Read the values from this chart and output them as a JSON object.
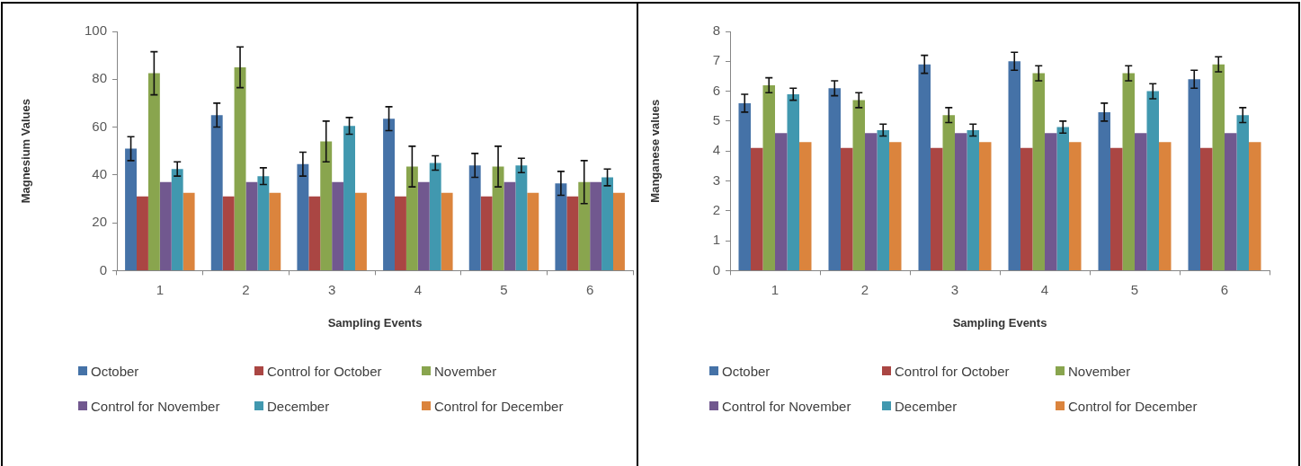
{
  "chart_data": [
    {
      "type": "bar",
      "xlabel": "Sampling Events",
      "ylabel": "Magnesium Values",
      "categories": [
        "1",
        "2",
        "3",
        "4",
        "5",
        "6"
      ],
      "series": [
        {
          "name": "October",
          "color": "#4572a7",
          "values": [
            51,
            65,
            44.5,
            63.5,
            44,
            36.5
          ],
          "errors": [
            5,
            5,
            5,
            5,
            5,
            5
          ]
        },
        {
          "name": "Control for October",
          "color": "#aa4643",
          "values": [
            31,
            31,
            31,
            31,
            31,
            31
          ]
        },
        {
          "name": "November",
          "color": "#89a54e",
          "values": [
            82.5,
            85,
            54,
            43.5,
            43.5,
            37
          ],
          "errors": [
            9,
            8.5,
            8.5,
            8.5,
            8.5,
            9
          ]
        },
        {
          "name": "Control for November",
          "color": "#71588f",
          "values": [
            37,
            37,
            37,
            37,
            37,
            37
          ]
        },
        {
          "name": "December",
          "color": "#4198af",
          "values": [
            42.5,
            39.5,
            60.5,
            45,
            44,
            39
          ],
          "errors": [
            3,
            3.5,
            3.5,
            3,
            3,
            3.5
          ]
        },
        {
          "name": "Control for December",
          "color": "#db843d",
          "values": [
            32.5,
            32.5,
            32.5,
            32.5,
            32.5,
            32.5
          ]
        }
      ],
      "ylim": [
        0,
        100
      ],
      "yticks": [
        0,
        20,
        40,
        60,
        80,
        100
      ],
      "legend": "bottom"
    },
    {
      "type": "bar",
      "xlabel": "Sampling Events",
      "ylabel": "Manganese values",
      "categories": [
        "1",
        "2",
        "3",
        "4",
        "5",
        "6"
      ],
      "series": [
        {
          "name": "October",
          "color": "#4572a7",
          "values": [
            5.6,
            6.1,
            6.9,
            7.0,
            5.3,
            6.4
          ],
          "errors": [
            0.3,
            0.25,
            0.3,
            0.3,
            0.3,
            0.3
          ]
        },
        {
          "name": "Control for October",
          "color": "#aa4643",
          "values": [
            4.1,
            4.1,
            4.1,
            4.1,
            4.1,
            4.1
          ]
        },
        {
          "name": "November",
          "color": "#89a54e",
          "values": [
            6.2,
            5.7,
            5.2,
            6.6,
            6.6,
            6.9
          ],
          "errors": [
            0.25,
            0.25,
            0.25,
            0.25,
            0.25,
            0.25
          ]
        },
        {
          "name": "Control for November",
          "color": "#71588f",
          "values": [
            4.6,
            4.6,
            4.6,
            4.6,
            4.6,
            4.6
          ]
        },
        {
          "name": "December",
          "color": "#4198af",
          "values": [
            5.9,
            4.7,
            4.7,
            4.8,
            6.0,
            5.2
          ],
          "errors": [
            0.2,
            0.2,
            0.2,
            0.2,
            0.25,
            0.25
          ]
        },
        {
          "name": "Control for December",
          "color": "#db843d",
          "values": [
            4.3,
            4.3,
            4.3,
            4.3,
            4.3,
            4.3
          ]
        }
      ],
      "ylim": [
        0,
        8
      ],
      "yticks": [
        0,
        1,
        2,
        3,
        4,
        5,
        6,
        7,
        8
      ],
      "legend": "bottom"
    }
  ]
}
